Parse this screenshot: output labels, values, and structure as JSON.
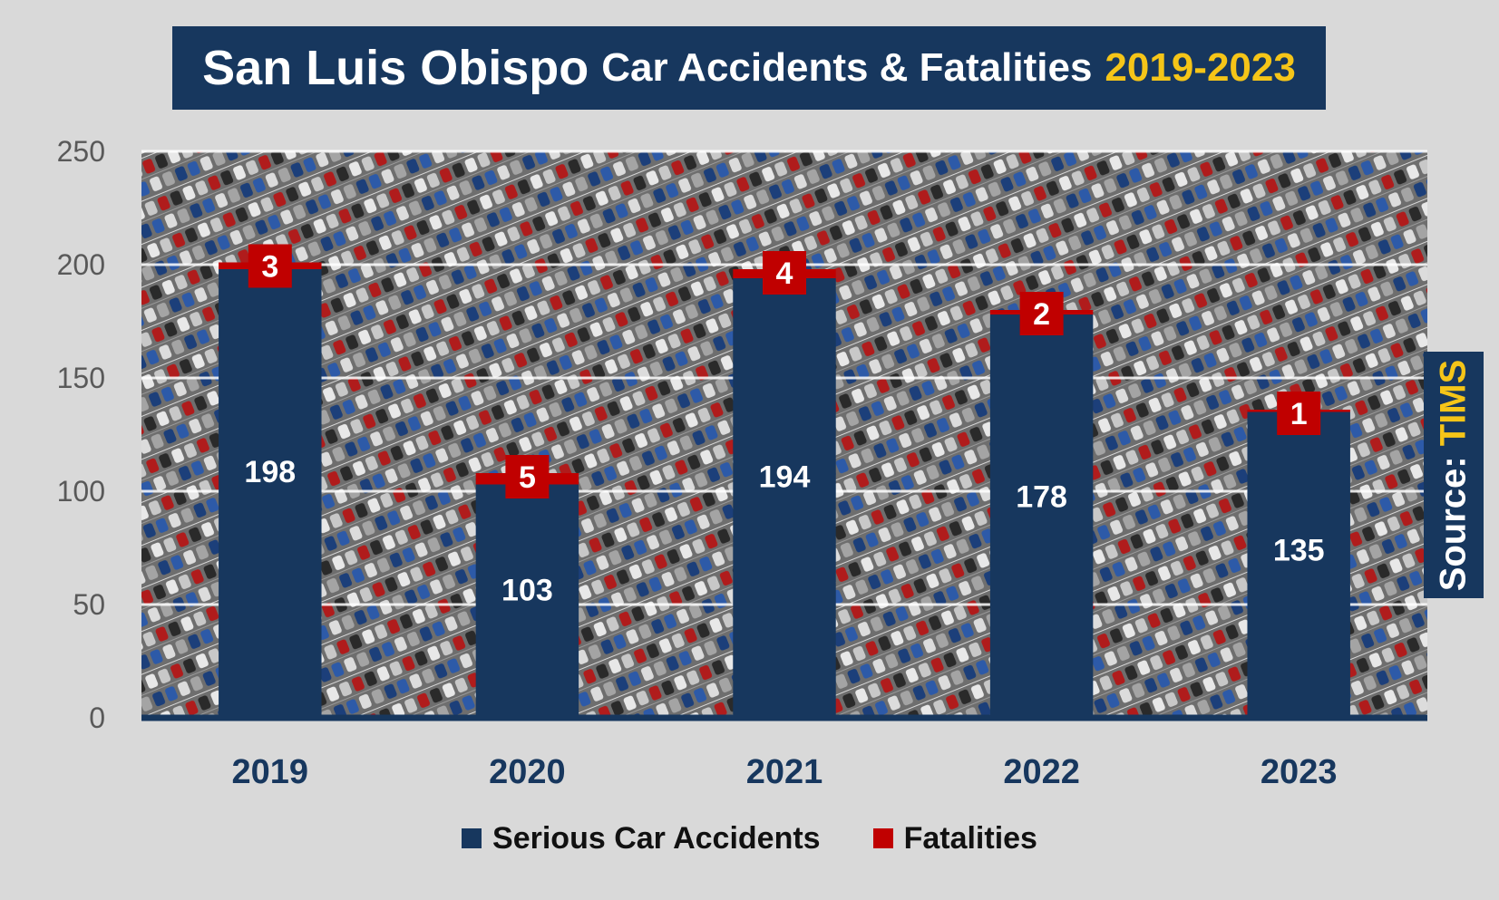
{
  "title": {
    "part1": "San Luis Obispo",
    "part2": "Car Accidents & Fatalities",
    "part3": "2019-2023"
  },
  "source": {
    "label": "Source:",
    "value": "TIMS"
  },
  "colors": {
    "background": "#d9d9d9",
    "navy": "#17375e",
    "red": "#c00000",
    "gold": "#f5c518"
  },
  "chart_data": {
    "type": "bar",
    "title": "San Luis Obispo Car Accidents & Fatalities 2019-2023",
    "categories": [
      "2019",
      "2020",
      "2021",
      "2022",
      "2023"
    ],
    "series": [
      {
        "name": "Serious Car Accidents",
        "values": [
          198,
          103,
          194,
          178,
          135
        ],
        "color": "#17375e"
      },
      {
        "name": "Fatalities",
        "values": [
          3,
          5,
          4,
          2,
          1
        ],
        "color": "#c00000"
      }
    ],
    "stacked": true,
    "ylim": [
      0,
      250
    ],
    "yticks": [
      0,
      50,
      100,
      150,
      200,
      250
    ],
    "grid": true,
    "legend": "bottom-center",
    "background_image": "parking-lot-photo"
  }
}
